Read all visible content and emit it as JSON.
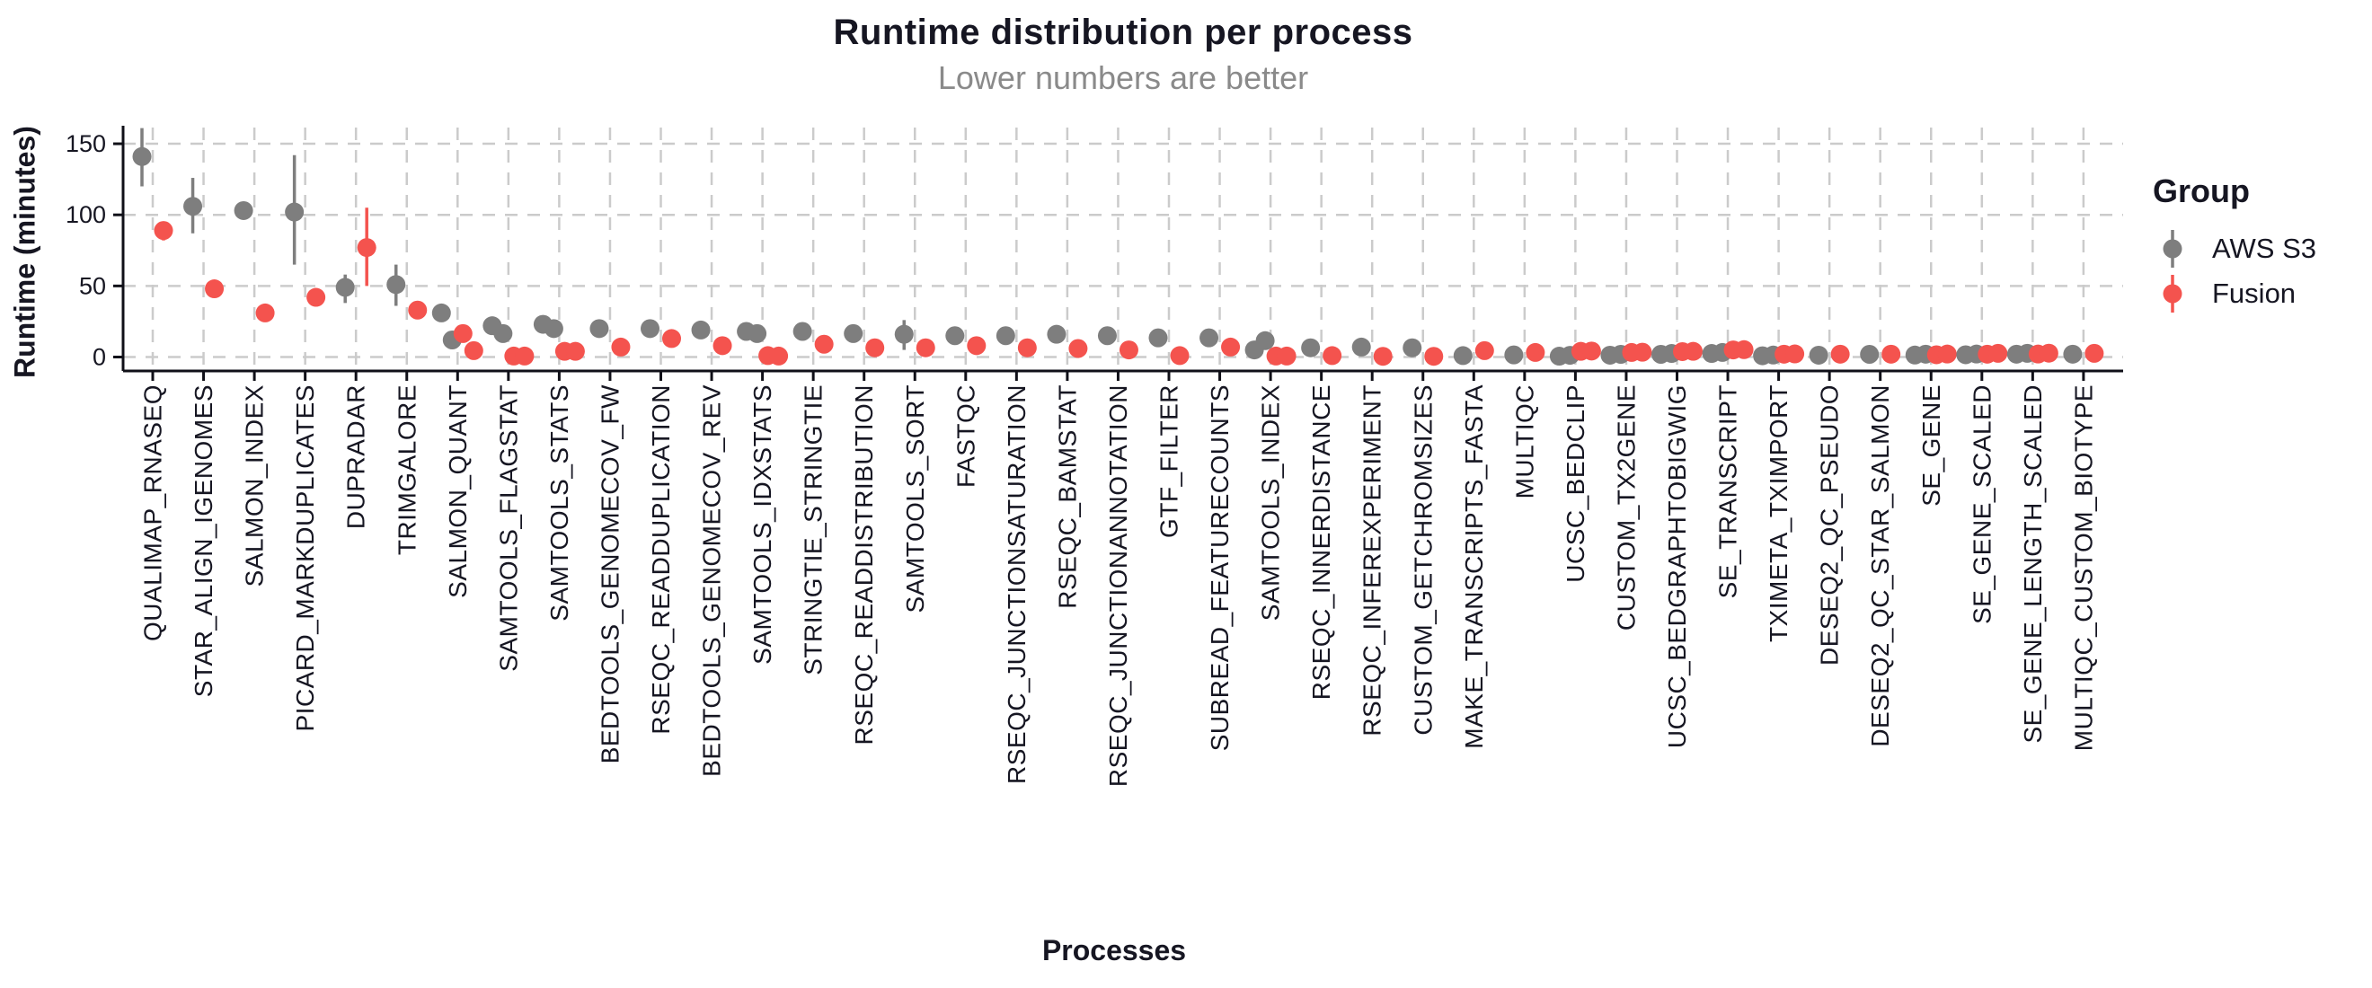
{
  "header": {
    "title": "Runtime distribution per process",
    "subtitle": "Lower numbers are better"
  },
  "axes": {
    "y_label": "Runtime (minutes)",
    "x_label": "Processes",
    "y_ticks": [
      0,
      50,
      100,
      150
    ]
  },
  "legend": {
    "title": "Group",
    "entries": [
      {
        "label": "AWS S3",
        "color": "#7E7E7E"
      },
      {
        "label": "Fusion",
        "color": "#F4534E"
      }
    ]
  },
  "colors": {
    "aws_s3": "#7E7E7E",
    "fusion": "#F4534E",
    "text": "#161622",
    "subtitle": "#8A8A8A",
    "grid": "#CBCBCB",
    "axis": "#101018"
  },
  "chart_data": {
    "type": "scatter",
    "title": "Runtime distribution per process",
    "subtitle": "Lower numbers are better",
    "xlabel": "Processes",
    "ylabel": "Runtime (minutes)",
    "ylim": [
      0,
      165
    ],
    "yticks": [
      0,
      50,
      100,
      150
    ],
    "grid": true,
    "legend_position": "right",
    "series_names": [
      "AWS S3",
      "Fusion"
    ],
    "processes": [
      {
        "name": "QUALIMAP_RNASEQ",
        "s3": {
          "points": [
            141
          ],
          "range": [
            120,
            161
          ]
        },
        "fusion": {
          "points": [
            89
          ],
          "range": [
            82,
            94
          ]
        }
      },
      {
        "name": "STAR_ALIGN_IGENOMES",
        "s3": {
          "points": [
            106
          ],
          "range": [
            87,
            126
          ]
        },
        "fusion": {
          "points": [
            48
          ]
        }
      },
      {
        "name": "SALMON_INDEX",
        "s3": {
          "points": [
            103
          ]
        },
        "fusion": {
          "points": [
            31
          ]
        }
      },
      {
        "name": "PICARD_MARKDUPLICATES",
        "s3": {
          "points": [
            102
          ],
          "range": [
            65,
            142
          ]
        },
        "fusion": {
          "points": [
            42
          ]
        }
      },
      {
        "name": "DUPRADAR",
        "s3": {
          "points": [
            49
          ],
          "range": [
            38,
            58
          ]
        },
        "fusion": {
          "points": [
            77
          ],
          "range": [
            50,
            105
          ]
        }
      },
      {
        "name": "TRIMGALORE",
        "s3": {
          "points": [
            51
          ],
          "range": [
            36,
            65
          ]
        },
        "fusion": {
          "points": [
            33
          ]
        }
      },
      {
        "name": "SALMON_QUANT",
        "s3": {
          "points": [
            31,
            12
          ]
        },
        "fusion": {
          "points": [
            16.5,
            4.5
          ]
        }
      },
      {
        "name": "SAMTOOLS_FLAGSTAT",
        "s3": {
          "points": [
            22,
            16.5
          ]
        },
        "fusion": {
          "points": [
            0.7,
            0.7
          ]
        }
      },
      {
        "name": "SAMTOOLS_STATS",
        "s3": {
          "points": [
            23,
            20
          ]
        },
        "fusion": {
          "points": [
            4,
            4
          ]
        }
      },
      {
        "name": "BEDTOOLS_GENOMECOV_FW",
        "s3": {
          "points": [
            20
          ]
        },
        "fusion": {
          "points": [
            7
          ]
        }
      },
      {
        "name": "RSEQC_READDUPLICATION",
        "s3": {
          "points": [
            20
          ]
        },
        "fusion": {
          "points": [
            13
          ]
        }
      },
      {
        "name": "BEDTOOLS_GENOMECOV_REV",
        "s3": {
          "points": [
            19
          ]
        },
        "fusion": {
          "points": [
            8
          ]
        }
      },
      {
        "name": "SAMTOOLS_IDXSTATS",
        "s3": {
          "points": [
            18,
            16.5
          ]
        },
        "fusion": {
          "points": [
            1,
            0.7
          ]
        }
      },
      {
        "name": "STRINGTIE_STRINGTIE",
        "s3": {
          "points": [
            18
          ]
        },
        "fusion": {
          "points": [
            9
          ]
        }
      },
      {
        "name": "RSEQC_READDISTRIBUTION",
        "s3": {
          "points": [
            16.5
          ]
        },
        "fusion": {
          "points": [
            6.5
          ]
        }
      },
      {
        "name": "SAMTOOLS_SORT",
        "s3": {
          "points": [
            16
          ],
          "range": [
            5,
            26
          ]
        },
        "fusion": {
          "points": [
            6.5
          ]
        }
      },
      {
        "name": "FASTQC",
        "s3": {
          "points": [
            15
          ]
        },
        "fusion": {
          "points": [
            8
          ]
        }
      },
      {
        "name": "RSEQC_JUNCTIONSATURATION",
        "s3": {
          "points": [
            15
          ]
        },
        "fusion": {
          "points": [
            6.5
          ]
        }
      },
      {
        "name": "RSEQC_BAMSTAT",
        "s3": {
          "points": [
            16
          ]
        },
        "fusion": {
          "points": [
            6
          ]
        }
      },
      {
        "name": "RSEQC_JUNCTIONANNOTATION",
        "s3": {
          "points": [
            15
          ]
        },
        "fusion": {
          "points": [
            5
          ]
        }
      },
      {
        "name": "GTF_FILTER",
        "s3": {
          "points": [
            13.5
          ]
        },
        "fusion": {
          "points": [
            1
          ]
        }
      },
      {
        "name": "SUBREAD_FEATURECOUNTS",
        "s3": {
          "points": [
            13.5
          ]
        },
        "fusion": {
          "points": [
            7
          ]
        }
      },
      {
        "name": "SAMTOOLS_INDEX",
        "s3": {
          "points": [
            5,
            11.5
          ]
        },
        "fusion": {
          "points": [
            0.7,
            0.7
          ]
        }
      },
      {
        "name": "RSEQC_INNERDISTANCE",
        "s3": {
          "points": [
            6.5
          ]
        },
        "fusion": {
          "points": [
            1
          ]
        }
      },
      {
        "name": "RSEQC_INFEREXPERIMENT",
        "s3": {
          "points": [
            7
          ]
        },
        "fusion": {
          "points": [
            0.5
          ]
        }
      },
      {
        "name": "CUSTOM_GETCHROMSIZES",
        "s3": {
          "points": [
            6.5
          ]
        },
        "fusion": {
          "points": [
            0.5
          ]
        }
      },
      {
        "name": "MAKE_TRANSCRIPTS_FASTA",
        "s3": {
          "points": [
            1
          ]
        },
        "fusion": {
          "points": [
            4.5
          ]
        }
      },
      {
        "name": "MULTIQC",
        "s3": {
          "points": [
            1.5
          ]
        },
        "fusion": {
          "points": [
            3.2
          ]
        }
      },
      {
        "name": "UCSC_BEDCLIP",
        "s3": {
          "points": [
            0.6,
            1.2
          ]
        },
        "fusion": {
          "points": [
            4,
            4.2
          ]
        }
      },
      {
        "name": "CUSTOM_TX2GENE",
        "s3": {
          "points": [
            1.3,
            1.9
          ]
        },
        "fusion": {
          "points": [
            3.2,
            3.4
          ]
        }
      },
      {
        "name": "UCSC_BEDGRAPHTOBIGWIG",
        "s3": {
          "points": [
            1.9,
            2.5
          ]
        },
        "fusion": {
          "points": [
            3.8,
            4
          ]
        }
      },
      {
        "name": "SE_TRANSCRIPT",
        "s3": {
          "points": [
            2.5,
            3.2
          ]
        },
        "fusion": {
          "points": [
            5,
            5.2
          ]
        }
      },
      {
        "name": "TXIMETA_TXIMPORT",
        "s3": {
          "points": [
            0.9,
            1.4
          ]
        },
        "fusion": {
          "points": [
            2,
            2.2
          ]
        }
      },
      {
        "name": "DESEQ2_QC_PSEUDO",
        "s3": {
          "points": [
            1.3
          ]
        },
        "fusion": {
          "points": [
            2
          ]
        }
      },
      {
        "name": "DESEQ2_QC_STAR_SALMON",
        "s3": {
          "points": [
            1.9
          ]
        },
        "fusion": {
          "points": [
            2
          ]
        }
      },
      {
        "name": "SE_GENE",
        "s3": {
          "points": [
            1.4,
            2
          ]
        },
        "fusion": {
          "points": [
            1.6,
            2.1
          ]
        }
      },
      {
        "name": "SE_GENE_SCALED",
        "s3": {
          "points": [
            1.6,
            2.1
          ]
        },
        "fusion": {
          "points": [
            2,
            2.6
          ]
        }
      },
      {
        "name": "SE_GENE_LENGTH_SCALED",
        "s3": {
          "points": [
            2,
            2.6
          ]
        },
        "fusion": {
          "points": [
            2.1,
            2.7
          ]
        }
      },
      {
        "name": "MULTIQC_CUSTOM_BIOTYPE",
        "s3": {
          "points": [
            2
          ]
        },
        "fusion": {
          "points": [
            2.6
          ]
        }
      }
    ]
  }
}
